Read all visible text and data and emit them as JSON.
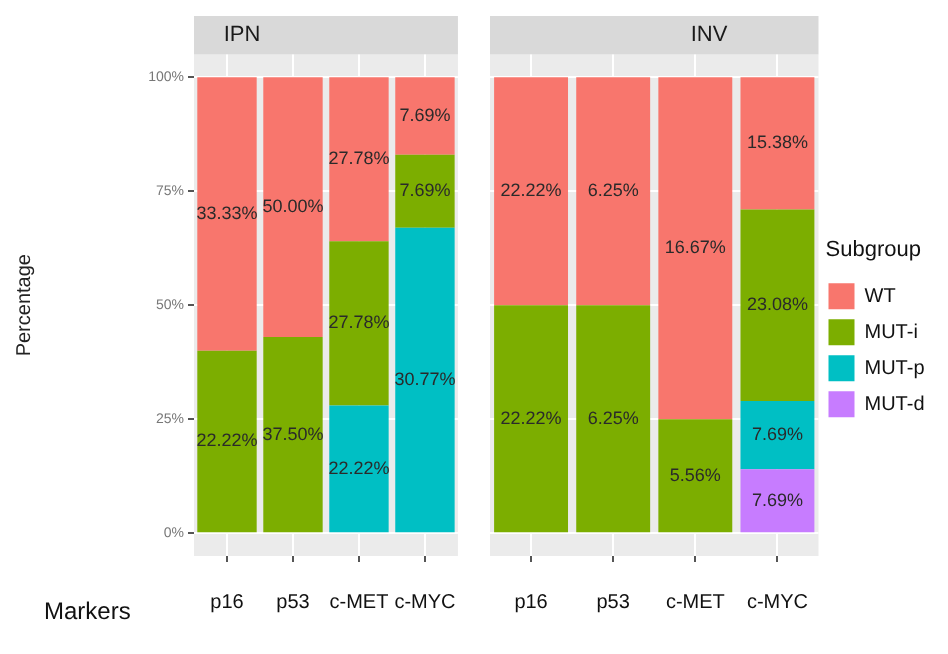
{
  "chart_data": [
    {
      "type": "bar",
      "title": "IPN",
      "xlabel": "Markers",
      "ylabel": "Percentage",
      "categories": [
        "p16",
        "p53",
        "c-MET",
        "c-MYC"
      ],
      "stacked": true,
      "grid": true,
      "legend": false,
      "ylim": [
        -5,
        105
      ],
      "yticks": [
        {
          "value": 0,
          "label": "0%"
        },
        {
          "value": 25,
          "label": "25%"
        },
        {
          "value": 50,
          "label": "50%"
        },
        {
          "value": 75,
          "label": "75%"
        },
        {
          "value": 100,
          "label": "100%"
        }
      ],
      "series": [
        {
          "color": "#00bfc4",
          "values": [
            null,
            null,
            28,
            67
          ]
        },
        {
          "color": "#7cae00",
          "values": [
            40,
            43,
            36,
            16
          ]
        },
        {
          "color": "#f8766d",
          "values": [
            60,
            57,
            36,
            17
          ]
        }
      ],
      "annotations": [
        "22.22%",
        "30.77%",
        "22.22%",
        "37.50%",
        "27.78%",
        "7.69%",
        "33.33%",
        "50.00%",
        "27.78%",
        "7.69%"
      ]
    },
    {
      "type": "bar",
      "title": "INV",
      "categories": [
        "p16",
        "p53",
        "c-MET",
        "c-MYC"
      ],
      "stacked": true,
      "grid": true,
      "legend": "right",
      "legend_title": "Subgroup",
      "tick_labels": "x",
      "ylim": [
        -5,
        105
      ],
      "yticks": [
        0,
        25,
        50,
        75,
        100
      ],
      "series": [
        {
          "name": "MUT-d",
          "color": "#c77cff",
          "values": [
            null,
            null,
            null,
            14
          ]
        },
        {
          "name": "MUT-p",
          "color": "#00bfc4",
          "values": [
            null,
            null,
            null,
            15
          ]
        },
        {
          "name": "MUT-i",
          "color": "#7cae00",
          "values": [
            50,
            50,
            25,
            42
          ]
        },
        {
          "name": "WT",
          "color": "#f8766d",
          "values": [
            50,
            50,
            75,
            29
          ]
        }
      ],
      "annotations": [
        "7.69%",
        "7.69%",
        "22.22%",
        "6.25%",
        "5.56%",
        "23.08%",
        "22.22%",
        "6.25%",
        "16.67%",
        "15.38%"
      ]
    }
  ]
}
